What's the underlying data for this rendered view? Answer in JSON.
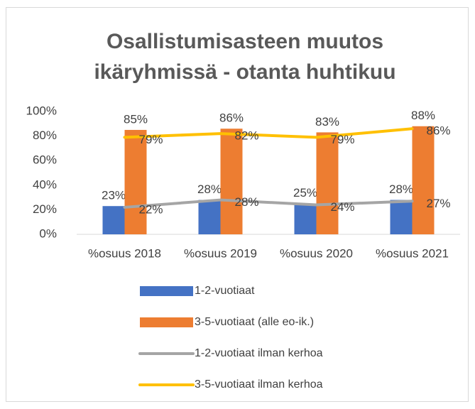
{
  "chart_data": {
    "type": "combo",
    "title": [
      "Osallistumisasteen muutos",
      "ikäryhmissä - otanta huhtikuu"
    ],
    "categories": [
      "%osuus 2018",
      "%osuus 2019",
      "%osuus 2020",
      "%osuus 2021"
    ],
    "series": [
      {
        "name": "1-2-vuotiaat",
        "type": "bar",
        "color": "#4472c4",
        "values": [
          23,
          28,
          25,
          28
        ],
        "value_labels": [
          "23%",
          "28%",
          "25%",
          "28%"
        ]
      },
      {
        "name": "3-5-vuotiaat (alle eo-ik.)",
        "type": "bar",
        "color": "#ed7d31",
        "values": [
          85,
          86,
          83,
          88
        ],
        "value_labels": [
          "85%",
          "86%",
          "83%",
          "88%"
        ]
      },
      {
        "name": "1-2-vuotiaat ilman kerhoa",
        "type": "line",
        "color": "#a5a5a5",
        "values": [
          22,
          28,
          24,
          27
        ],
        "value_labels": [
          "22%",
          "28%",
          "24%",
          "27%"
        ]
      },
      {
        "name": "3-5-vuotiaat ilman kerhoa",
        "type": "line",
        "color": "#ffc000",
        "values": [
          79,
          82,
          79,
          86
        ],
        "value_labels": [
          "79%",
          "82%",
          "79%",
          "86%"
        ]
      }
    ],
    "ylim": [
      0,
      100
    ],
    "yticks": [
      {
        "value": 0,
        "label": "0%"
      },
      {
        "value": 20,
        "label": "20%"
      },
      {
        "value": 40,
        "label": "40%"
      },
      {
        "value": 60,
        "label": "60%"
      },
      {
        "value": 80,
        "label": "80%"
      },
      {
        "value": 100,
        "label": "100%"
      }
    ],
    "grid": false,
    "legend": "bottom"
  }
}
